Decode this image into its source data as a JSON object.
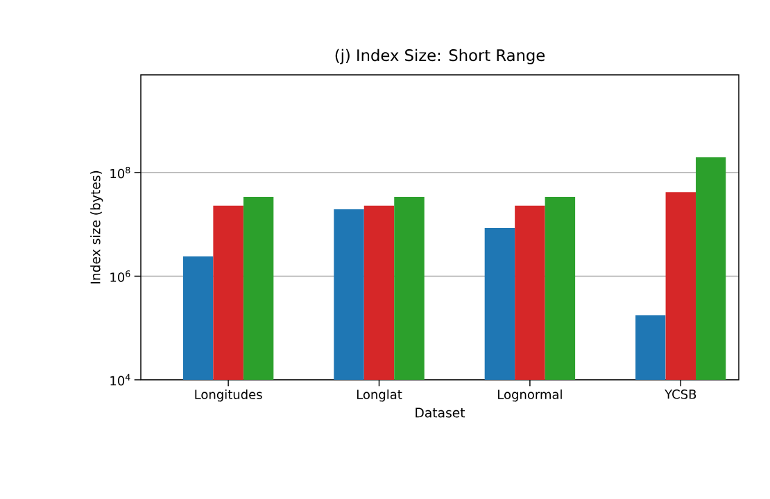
{
  "chart_data": {
    "type": "bar",
    "title": "(j) Index Size: Short Range",
    "xlabel": "Dataset",
    "ylabel": "Index size (bytes)",
    "categories": [
      "Longitudes",
      "Longlat",
      "Lognormal",
      "YCSB"
    ],
    "series": [
      {
        "color": "#1f77b4",
        "values": [
          2400000,
          19500000,
          8500000,
          175000
        ]
      },
      {
        "color": "#d62728",
        "values": [
          23000000,
          23000000,
          23000000,
          42000000
        ]
      },
      {
        "color": "#2ca02c",
        "values": [
          34000000,
          34000000,
          34000000,
          197000000
        ]
      }
    ],
    "log": "y",
    "ylim": [
      10000,
      7700000000
    ],
    "yticks": [
      {
        "value": 10000,
        "label": "10$^{4}$"
      },
      {
        "value": 1000000,
        "label": "10$^{6}$"
      },
      {
        "value": 100000000,
        "label": "10$^{8}$"
      }
    ],
    "grid": "y"
  }
}
